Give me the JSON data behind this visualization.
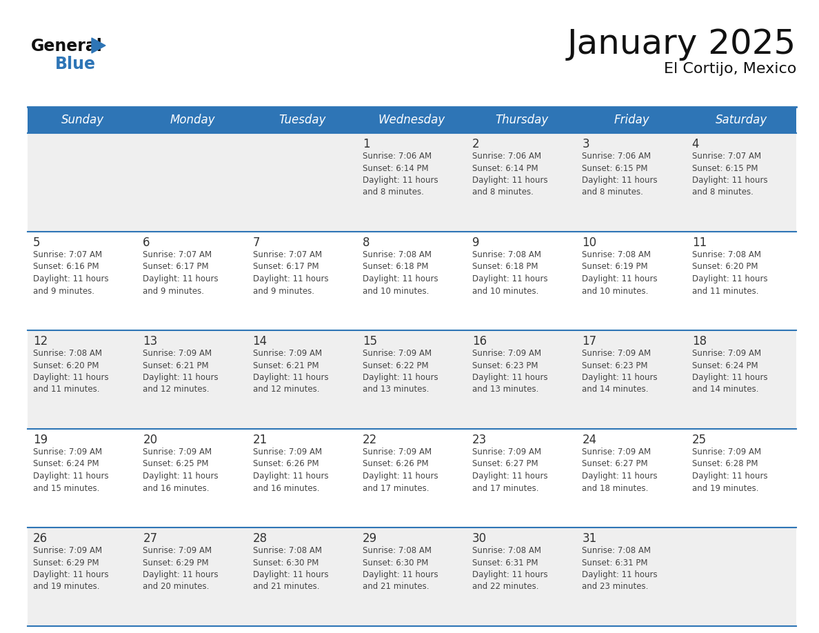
{
  "title": "January 2025",
  "subtitle": "El Cortijo, Mexico",
  "header_bg_color": "#2E75B6",
  "header_text_color": "#FFFFFF",
  "day_names": [
    "Sunday",
    "Monday",
    "Tuesday",
    "Wednesday",
    "Thursday",
    "Friday",
    "Saturday"
  ],
  "row_bg_colors": [
    "#EFEFEF",
    "#FFFFFF",
    "#EFEFEF",
    "#FFFFFF",
    "#EFEFEF"
  ],
  "grid_line_color": "#2E75B6",
  "day_num_color": "#333333",
  "cell_text_color": "#444444",
  "title_fontsize": 36,
  "subtitle_fontsize": 16,
  "header_fontsize": 12,
  "day_num_fontsize": 12,
  "cell_text_fontsize": 8.5,
  "calendar": [
    [
      {
        "day": "",
        "sunrise": "",
        "sunset": "",
        "daylight_h": "",
        "daylight_m": ""
      },
      {
        "day": "",
        "sunrise": "",
        "sunset": "",
        "daylight_h": "",
        "daylight_m": ""
      },
      {
        "day": "",
        "sunrise": "",
        "sunset": "",
        "daylight_h": "",
        "daylight_m": ""
      },
      {
        "day": "1",
        "sunrise": "7:06 AM",
        "sunset": "6:14 PM",
        "daylight_h": "11 hours",
        "daylight_m": "and 8 minutes."
      },
      {
        "day": "2",
        "sunrise": "7:06 AM",
        "sunset": "6:14 PM",
        "daylight_h": "11 hours",
        "daylight_m": "and 8 minutes."
      },
      {
        "day": "3",
        "sunrise": "7:06 AM",
        "sunset": "6:15 PM",
        "daylight_h": "11 hours",
        "daylight_m": "and 8 minutes."
      },
      {
        "day": "4",
        "sunrise": "7:07 AM",
        "sunset": "6:15 PM",
        "daylight_h": "11 hours",
        "daylight_m": "and 8 minutes."
      }
    ],
    [
      {
        "day": "5",
        "sunrise": "7:07 AM",
        "sunset": "6:16 PM",
        "daylight_h": "11 hours",
        "daylight_m": "and 9 minutes."
      },
      {
        "day": "6",
        "sunrise": "7:07 AM",
        "sunset": "6:17 PM",
        "daylight_h": "11 hours",
        "daylight_m": "and 9 minutes."
      },
      {
        "day": "7",
        "sunrise": "7:07 AM",
        "sunset": "6:17 PM",
        "daylight_h": "11 hours",
        "daylight_m": "and 9 minutes."
      },
      {
        "day": "8",
        "sunrise": "7:08 AM",
        "sunset": "6:18 PM",
        "daylight_h": "11 hours",
        "daylight_m": "and 10 minutes."
      },
      {
        "day": "9",
        "sunrise": "7:08 AM",
        "sunset": "6:18 PM",
        "daylight_h": "11 hours",
        "daylight_m": "and 10 minutes."
      },
      {
        "day": "10",
        "sunrise": "7:08 AM",
        "sunset": "6:19 PM",
        "daylight_h": "11 hours",
        "daylight_m": "and 10 minutes."
      },
      {
        "day": "11",
        "sunrise": "7:08 AM",
        "sunset": "6:20 PM",
        "daylight_h": "11 hours",
        "daylight_m": "and 11 minutes."
      }
    ],
    [
      {
        "day": "12",
        "sunrise": "7:08 AM",
        "sunset": "6:20 PM",
        "daylight_h": "11 hours",
        "daylight_m": "and 11 minutes."
      },
      {
        "day": "13",
        "sunrise": "7:09 AM",
        "sunset": "6:21 PM",
        "daylight_h": "11 hours",
        "daylight_m": "and 12 minutes."
      },
      {
        "day": "14",
        "sunrise": "7:09 AM",
        "sunset": "6:21 PM",
        "daylight_h": "11 hours",
        "daylight_m": "and 12 minutes."
      },
      {
        "day": "15",
        "sunrise": "7:09 AM",
        "sunset": "6:22 PM",
        "daylight_h": "11 hours",
        "daylight_m": "and 13 minutes."
      },
      {
        "day": "16",
        "sunrise": "7:09 AM",
        "sunset": "6:23 PM",
        "daylight_h": "11 hours",
        "daylight_m": "and 13 minutes."
      },
      {
        "day": "17",
        "sunrise": "7:09 AM",
        "sunset": "6:23 PM",
        "daylight_h": "11 hours",
        "daylight_m": "and 14 minutes."
      },
      {
        "day": "18",
        "sunrise": "7:09 AM",
        "sunset": "6:24 PM",
        "daylight_h": "11 hours",
        "daylight_m": "and 14 minutes."
      }
    ],
    [
      {
        "day": "19",
        "sunrise": "7:09 AM",
        "sunset": "6:24 PM",
        "daylight_h": "11 hours",
        "daylight_m": "and 15 minutes."
      },
      {
        "day": "20",
        "sunrise": "7:09 AM",
        "sunset": "6:25 PM",
        "daylight_h": "11 hours",
        "daylight_m": "and 16 minutes."
      },
      {
        "day": "21",
        "sunrise": "7:09 AM",
        "sunset": "6:26 PM",
        "daylight_h": "11 hours",
        "daylight_m": "and 16 minutes."
      },
      {
        "day": "22",
        "sunrise": "7:09 AM",
        "sunset": "6:26 PM",
        "daylight_h": "11 hours",
        "daylight_m": "and 17 minutes."
      },
      {
        "day": "23",
        "sunrise": "7:09 AM",
        "sunset": "6:27 PM",
        "daylight_h": "11 hours",
        "daylight_m": "and 17 minutes."
      },
      {
        "day": "24",
        "sunrise": "7:09 AM",
        "sunset": "6:27 PM",
        "daylight_h": "11 hours",
        "daylight_m": "and 18 minutes."
      },
      {
        "day": "25",
        "sunrise": "7:09 AM",
        "sunset": "6:28 PM",
        "daylight_h": "11 hours",
        "daylight_m": "and 19 minutes."
      }
    ],
    [
      {
        "day": "26",
        "sunrise": "7:09 AM",
        "sunset": "6:29 PM",
        "daylight_h": "11 hours",
        "daylight_m": "and 19 minutes."
      },
      {
        "day": "27",
        "sunrise": "7:09 AM",
        "sunset": "6:29 PM",
        "daylight_h": "11 hours",
        "daylight_m": "and 20 minutes."
      },
      {
        "day": "28",
        "sunrise": "7:08 AM",
        "sunset": "6:30 PM",
        "daylight_h": "11 hours",
        "daylight_m": "and 21 minutes."
      },
      {
        "day": "29",
        "sunrise": "7:08 AM",
        "sunset": "6:30 PM",
        "daylight_h": "11 hours",
        "daylight_m": "and 21 minutes."
      },
      {
        "day": "30",
        "sunrise": "7:08 AM",
        "sunset": "6:31 PM",
        "daylight_h": "11 hours",
        "daylight_m": "and 22 minutes."
      },
      {
        "day": "31",
        "sunrise": "7:08 AM",
        "sunset": "6:31 PM",
        "daylight_h": "11 hours",
        "daylight_m": "and 23 minutes."
      },
      {
        "day": "",
        "sunrise": "",
        "sunset": "",
        "daylight_h": "",
        "daylight_m": ""
      }
    ]
  ]
}
